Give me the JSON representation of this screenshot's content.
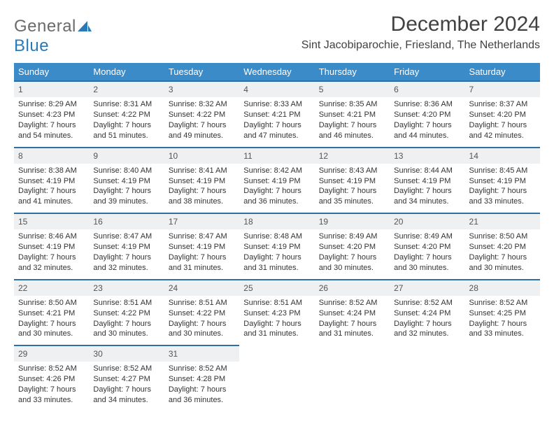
{
  "brand": {
    "name_a": "General",
    "name_b": "Blue"
  },
  "colors": {
    "header_bg": "#3b8bc9",
    "row_border": "#2f6fa3",
    "daynum_bg": "#eef0f1",
    "text": "#333333",
    "logo_gray": "#6b6b6b",
    "logo_blue": "#2a7ab8"
  },
  "title": "December 2024",
  "subtitle": "Sint Jacobiparochie, Friesland, The Netherlands",
  "dow": [
    "Sunday",
    "Monday",
    "Tuesday",
    "Wednesday",
    "Thursday",
    "Friday",
    "Saturday"
  ],
  "weeks": [
    [
      {
        "n": "1",
        "sr": "Sunrise: 8:29 AM",
        "ss": "Sunset: 4:23 PM",
        "d1": "Daylight: 7 hours",
        "d2": "and 54 minutes."
      },
      {
        "n": "2",
        "sr": "Sunrise: 8:31 AM",
        "ss": "Sunset: 4:22 PM",
        "d1": "Daylight: 7 hours",
        "d2": "and 51 minutes."
      },
      {
        "n": "3",
        "sr": "Sunrise: 8:32 AM",
        "ss": "Sunset: 4:22 PM",
        "d1": "Daylight: 7 hours",
        "d2": "and 49 minutes."
      },
      {
        "n": "4",
        "sr": "Sunrise: 8:33 AM",
        "ss": "Sunset: 4:21 PM",
        "d1": "Daylight: 7 hours",
        "d2": "and 47 minutes."
      },
      {
        "n": "5",
        "sr": "Sunrise: 8:35 AM",
        "ss": "Sunset: 4:21 PM",
        "d1": "Daylight: 7 hours",
        "d2": "and 46 minutes."
      },
      {
        "n": "6",
        "sr": "Sunrise: 8:36 AM",
        "ss": "Sunset: 4:20 PM",
        "d1": "Daylight: 7 hours",
        "d2": "and 44 minutes."
      },
      {
        "n": "7",
        "sr": "Sunrise: 8:37 AM",
        "ss": "Sunset: 4:20 PM",
        "d1": "Daylight: 7 hours",
        "d2": "and 42 minutes."
      }
    ],
    [
      {
        "n": "8",
        "sr": "Sunrise: 8:38 AM",
        "ss": "Sunset: 4:19 PM",
        "d1": "Daylight: 7 hours",
        "d2": "and 41 minutes."
      },
      {
        "n": "9",
        "sr": "Sunrise: 8:40 AM",
        "ss": "Sunset: 4:19 PM",
        "d1": "Daylight: 7 hours",
        "d2": "and 39 minutes."
      },
      {
        "n": "10",
        "sr": "Sunrise: 8:41 AM",
        "ss": "Sunset: 4:19 PM",
        "d1": "Daylight: 7 hours",
        "d2": "and 38 minutes."
      },
      {
        "n": "11",
        "sr": "Sunrise: 8:42 AM",
        "ss": "Sunset: 4:19 PM",
        "d1": "Daylight: 7 hours",
        "d2": "and 36 minutes."
      },
      {
        "n": "12",
        "sr": "Sunrise: 8:43 AM",
        "ss": "Sunset: 4:19 PM",
        "d1": "Daylight: 7 hours",
        "d2": "and 35 minutes."
      },
      {
        "n": "13",
        "sr": "Sunrise: 8:44 AM",
        "ss": "Sunset: 4:19 PM",
        "d1": "Daylight: 7 hours",
        "d2": "and 34 minutes."
      },
      {
        "n": "14",
        "sr": "Sunrise: 8:45 AM",
        "ss": "Sunset: 4:19 PM",
        "d1": "Daylight: 7 hours",
        "d2": "and 33 minutes."
      }
    ],
    [
      {
        "n": "15",
        "sr": "Sunrise: 8:46 AM",
        "ss": "Sunset: 4:19 PM",
        "d1": "Daylight: 7 hours",
        "d2": "and 32 minutes."
      },
      {
        "n": "16",
        "sr": "Sunrise: 8:47 AM",
        "ss": "Sunset: 4:19 PM",
        "d1": "Daylight: 7 hours",
        "d2": "and 32 minutes."
      },
      {
        "n": "17",
        "sr": "Sunrise: 8:47 AM",
        "ss": "Sunset: 4:19 PM",
        "d1": "Daylight: 7 hours",
        "d2": "and 31 minutes."
      },
      {
        "n": "18",
        "sr": "Sunrise: 8:48 AM",
        "ss": "Sunset: 4:19 PM",
        "d1": "Daylight: 7 hours",
        "d2": "and 31 minutes."
      },
      {
        "n": "19",
        "sr": "Sunrise: 8:49 AM",
        "ss": "Sunset: 4:20 PM",
        "d1": "Daylight: 7 hours",
        "d2": "and 30 minutes."
      },
      {
        "n": "20",
        "sr": "Sunrise: 8:49 AM",
        "ss": "Sunset: 4:20 PM",
        "d1": "Daylight: 7 hours",
        "d2": "and 30 minutes."
      },
      {
        "n": "21",
        "sr": "Sunrise: 8:50 AM",
        "ss": "Sunset: 4:20 PM",
        "d1": "Daylight: 7 hours",
        "d2": "and 30 minutes."
      }
    ],
    [
      {
        "n": "22",
        "sr": "Sunrise: 8:50 AM",
        "ss": "Sunset: 4:21 PM",
        "d1": "Daylight: 7 hours",
        "d2": "and 30 minutes."
      },
      {
        "n": "23",
        "sr": "Sunrise: 8:51 AM",
        "ss": "Sunset: 4:22 PM",
        "d1": "Daylight: 7 hours",
        "d2": "and 30 minutes."
      },
      {
        "n": "24",
        "sr": "Sunrise: 8:51 AM",
        "ss": "Sunset: 4:22 PM",
        "d1": "Daylight: 7 hours",
        "d2": "and 30 minutes."
      },
      {
        "n": "25",
        "sr": "Sunrise: 8:51 AM",
        "ss": "Sunset: 4:23 PM",
        "d1": "Daylight: 7 hours",
        "d2": "and 31 minutes."
      },
      {
        "n": "26",
        "sr": "Sunrise: 8:52 AM",
        "ss": "Sunset: 4:24 PM",
        "d1": "Daylight: 7 hours",
        "d2": "and 31 minutes."
      },
      {
        "n": "27",
        "sr": "Sunrise: 8:52 AM",
        "ss": "Sunset: 4:24 PM",
        "d1": "Daylight: 7 hours",
        "d2": "and 32 minutes."
      },
      {
        "n": "28",
        "sr": "Sunrise: 8:52 AM",
        "ss": "Sunset: 4:25 PM",
        "d1": "Daylight: 7 hours",
        "d2": "and 33 minutes."
      }
    ],
    [
      {
        "n": "29",
        "sr": "Sunrise: 8:52 AM",
        "ss": "Sunset: 4:26 PM",
        "d1": "Daylight: 7 hours",
        "d2": "and 33 minutes."
      },
      {
        "n": "30",
        "sr": "Sunrise: 8:52 AM",
        "ss": "Sunset: 4:27 PM",
        "d1": "Daylight: 7 hours",
        "d2": "and 34 minutes."
      },
      {
        "n": "31",
        "sr": "Sunrise: 8:52 AM",
        "ss": "Sunset: 4:28 PM",
        "d1": "Daylight: 7 hours",
        "d2": "and 36 minutes."
      },
      null,
      null,
      null,
      null
    ]
  ]
}
